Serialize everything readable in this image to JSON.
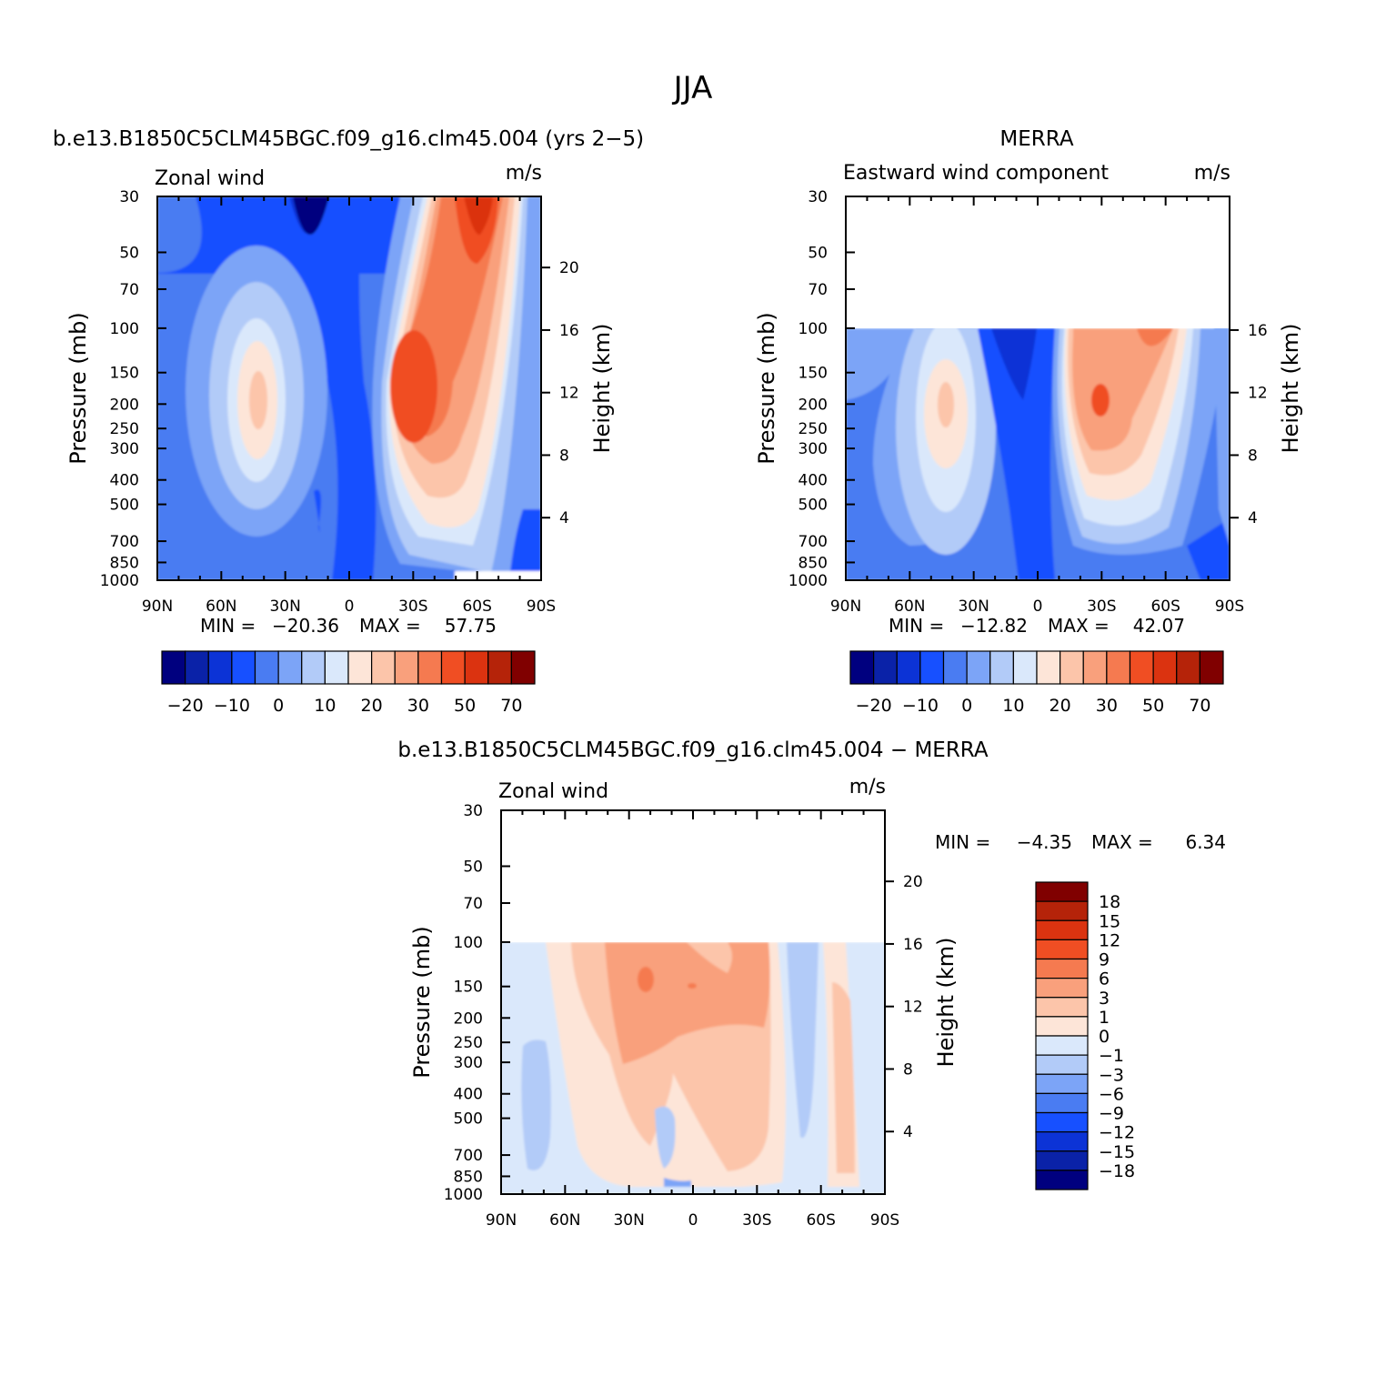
{
  "figure": {
    "title": "JJA"
  },
  "chart_data": [
    {
      "type": "contour",
      "case_title": "b.e13.B1850C5CLM45BGC.f09_g16.clm45.004 (yrs 2−5)",
      "variable_label": "Zonal wind",
      "units": "m/s",
      "xlabel": "",
      "ylabel": "Pressure (mb)",
      "ylabel_right": "Height (km)",
      "x_ticks": [
        "90N",
        "60N",
        "30N",
        "0",
        "30S",
        "60S",
        "90S"
      ],
      "y_ticks": [
        "30",
        "50",
        "70",
        "100",
        "150",
        "200",
        "250",
        "300",
        "400",
        "500",
        "700",
        "850",
        "1000"
      ],
      "height_ticks": [
        "20",
        "16",
        "12",
        "8",
        "4"
      ],
      "ylim": [
        1000,
        30
      ],
      "stats": {
        "min_label": "MIN =",
        "min": "−20.36",
        "max_label": "MAX =",
        "max": "57.75"
      },
      "data_top_pressure": 30,
      "features": [
        {
          "lat": -40,
          "p": 180,
          "value": 58,
          "desc": "SH subtropical jet"
        },
        {
          "lat": -55,
          "p": 40,
          "value": 55,
          "desc": "SH polar night jet"
        },
        {
          "lat": 48,
          "p": 190,
          "value": 22,
          "desc": "NH westerly jet"
        },
        {
          "lat": 18,
          "p": 35,
          "value": -20,
          "desc": "tropical easterlies"
        }
      ]
    },
    {
      "type": "contour",
      "case_title": "MERRA",
      "variable_label": "Eastward wind component",
      "units": "m/s",
      "xlabel": "",
      "ylabel": "Pressure (mb)",
      "ylabel_right": "Height (km)",
      "x_ticks": [
        "90N",
        "60N",
        "30N",
        "0",
        "30S",
        "60S",
        "90S"
      ],
      "y_ticks": [
        "30",
        "50",
        "70",
        "100",
        "150",
        "200",
        "250",
        "300",
        "400",
        "500",
        "700",
        "850",
        "1000"
      ],
      "height_ticks": [
        "16",
        "12",
        "8",
        "4"
      ],
      "ylim": [
        1000,
        30
      ],
      "stats": {
        "min_label": "MIN =",
        "min": "−12.82",
        "max_label": "MAX =",
        "max": "42.07"
      },
      "data_top_pressure": 100,
      "features": [
        {
          "lat": -38,
          "p": 200,
          "value": 42,
          "desc": "SH subtropical jet"
        },
        {
          "lat": 42,
          "p": 200,
          "value": 22,
          "desc": "NH westerly jet"
        },
        {
          "lat": 8,
          "p": 150,
          "value": -12,
          "desc": "tropical easterlies"
        }
      ]
    },
    {
      "type": "contour",
      "case_title": "b.e13.B1850C5CLM45BGC.f09_g16.clm45.004 − MERRA",
      "variable_label": "Zonal wind",
      "units": "m/s",
      "xlabel": "",
      "ylabel": "Pressure (mb)",
      "ylabel_right": "Height (km)",
      "x_ticks": [
        "90N",
        "60N",
        "30N",
        "0",
        "30S",
        "60S",
        "90S"
      ],
      "y_ticks": [
        "30",
        "50",
        "70",
        "100",
        "150",
        "200",
        "250",
        "300",
        "400",
        "500",
        "700",
        "850",
        "1000"
      ],
      "height_ticks": [
        "20",
        "16",
        "12",
        "8",
        "4"
      ],
      "ylim": [
        1000,
        30
      ],
      "stats": {
        "min_label": "MIN =",
        "min": "−4.35",
        "max_label": "MAX =",
        "max": "6.34"
      },
      "data_top_pressure": 100,
      "features": [
        {
          "lat": 20,
          "p": 140,
          "value": 6.3,
          "desc": "positive difference maximum"
        },
        {
          "lat": 12,
          "p": 550,
          "value": -3,
          "desc": "negative difference minimum"
        }
      ]
    }
  ],
  "colorbars": {
    "main": {
      "colors": [
        "#00007f",
        "#0a22a8",
        "#0c33d6",
        "#1750ff",
        "#4a7cf2",
        "#7ca4f7",
        "#b2cbf8",
        "#dae8fb",
        "#fde5d8",
        "#fcc5aa",
        "#f9a07c",
        "#f57a50",
        "#f04e23",
        "#db3310",
        "#b52309",
        "#800000"
      ],
      "labels": [
        "−20",
        "−10",
        "0",
        "10",
        "20",
        "30",
        "50",
        "70"
      ],
      "levels": [
        -25,
        -20,
        -15,
        -10,
        -5,
        0,
        5,
        10,
        15,
        20,
        25,
        30,
        40,
        50,
        60,
        70
      ]
    },
    "diff": {
      "colors": [
        "#800000",
        "#b52309",
        "#db3310",
        "#f04e23",
        "#f57a50",
        "#f9a07c",
        "#fcc5aa",
        "#fde5d8",
        "#dae8fb",
        "#b2cbf8",
        "#7ca4f7",
        "#4a7cf2",
        "#1750ff",
        "#0c33d6",
        "#0a22a8",
        "#00007f"
      ],
      "labels": [
        "18",
        "15",
        "12",
        "9",
        "6",
        "3",
        "1",
        "0",
        "−1",
        "−3",
        "−6",
        "−9",
        "−12",
        "−15",
        "−18"
      ]
    }
  }
}
